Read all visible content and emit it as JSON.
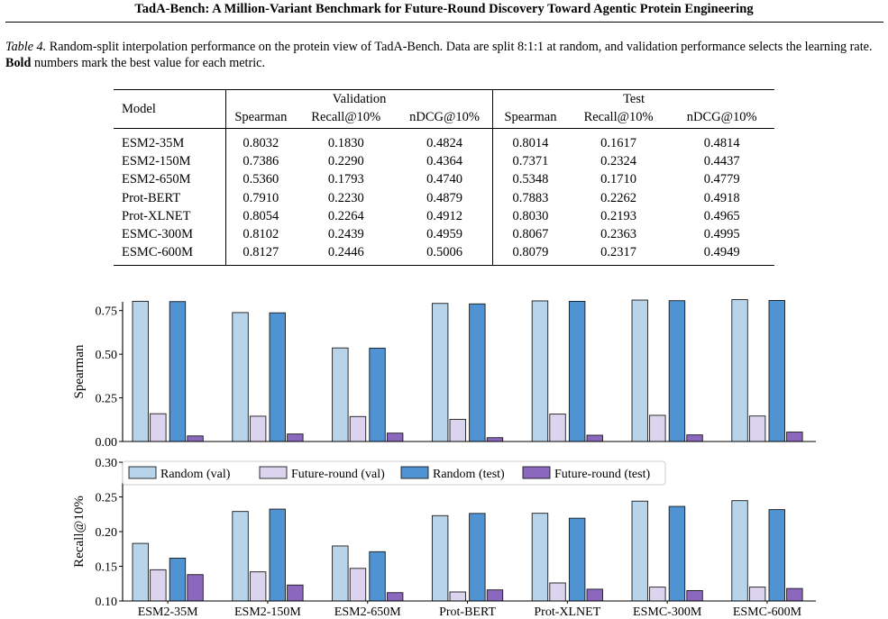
{
  "running_head": "TadA-Bench: A Million-Variant Benchmark for Future-Round Discovery Toward Agentic Protein Engineering",
  "caption": {
    "label": "Table 4.",
    "text_1": " Random-split interpolation performance on the protein view of TadA-Bench. Data are split 8:1:1 at random, and validation performance selects the learning rate. ",
    "bold_word": "Bold",
    "text_2": " numbers mark the best value for each metric."
  },
  "table": {
    "model_header": "Model",
    "groups": [
      "Validation",
      "Test"
    ],
    "metrics": [
      "Spearman",
      "Recall@10%",
      "nDCG@10%",
      "Spearman",
      "Recall@10%",
      "nDCG@10%"
    ],
    "rows": [
      {
        "model": "ESM2-35M",
        "cells": [
          {
            "v": "0.8032",
            "b": false
          },
          {
            "v": "0.1830",
            "b": false
          },
          {
            "v": "0.4824",
            "b": false
          },
          {
            "v": "0.8014",
            "b": false
          },
          {
            "v": "0.1617",
            "b": false
          },
          {
            "v": "0.4814",
            "b": false
          }
        ]
      },
      {
        "model": "ESM2-150M",
        "cells": [
          {
            "v": "0.7386",
            "b": false
          },
          {
            "v": "0.2290",
            "b": false
          },
          {
            "v": "0.4364",
            "b": false
          },
          {
            "v": "0.7371",
            "b": false
          },
          {
            "v": "0.2324",
            "b": false
          },
          {
            "v": "0.4437",
            "b": false
          }
        ]
      },
      {
        "model": "ESM2-650M",
        "cells": [
          {
            "v": "0.5360",
            "b": false
          },
          {
            "v": "0.1793",
            "b": false
          },
          {
            "v": "0.4740",
            "b": false
          },
          {
            "v": "0.5348",
            "b": false
          },
          {
            "v": "0.1710",
            "b": false
          },
          {
            "v": "0.4779",
            "b": false
          }
        ]
      },
      {
        "model": "Prot-BERT",
        "cells": [
          {
            "v": "0.7910",
            "b": false
          },
          {
            "v": "0.2230",
            "b": false
          },
          {
            "v": "0.4879",
            "b": false
          },
          {
            "v": "0.7883",
            "b": false
          },
          {
            "v": "0.2262",
            "b": false
          },
          {
            "v": "0.4918",
            "b": false
          }
        ]
      },
      {
        "model": "Prot-XLNET",
        "cells": [
          {
            "v": "0.8054",
            "b": false
          },
          {
            "v": "0.2264",
            "b": false
          },
          {
            "v": "0.4912",
            "b": false
          },
          {
            "v": "0.8030",
            "b": false
          },
          {
            "v": "0.2193",
            "b": false
          },
          {
            "v": "0.4965",
            "b": false
          }
        ]
      },
      {
        "model": "ESMC-300M",
        "cells": [
          {
            "v": "0.8102",
            "b": false
          },
          {
            "v": "0.2439",
            "b": false
          },
          {
            "v": "0.4959",
            "b": false
          },
          {
            "v": "0.8067",
            "b": false
          },
          {
            "v": "0.2363",
            "b": true
          },
          {
            "v": "0.4995",
            "b": true
          }
        ]
      },
      {
        "model": "ESMC-600M",
        "cells": [
          {
            "v": "0.8127",
            "b": true
          },
          {
            "v": "0.2446",
            "b": true
          },
          {
            "v": "0.5006",
            "b": true
          },
          {
            "v": "0.8079",
            "b": true
          },
          {
            "v": "0.2317",
            "b": false
          },
          {
            "v": "0.4949",
            "b": false
          }
        ]
      }
    ]
  },
  "chart_data": [
    {
      "type": "bar",
      "ylabel": "Spearman",
      "ylim": [
        0,
        0.8
      ],
      "yticks": [
        "0.00",
        "0.25",
        "0.50",
        "0.75"
      ],
      "ytick_values": [
        0,
        0.25,
        0.5,
        0.75
      ],
      "grid": false,
      "categories": [
        "ESM2-35M",
        "ESM2-150M",
        "ESM2-650M",
        "Prot-BERT",
        "Prot-XLNET",
        "ESMC-300M",
        "ESMC-600M"
      ],
      "series": [
        {
          "name": "Random (val)",
          "color": "#b7d4ea",
          "values": [
            0.8032,
            0.7386,
            0.536,
            0.791,
            0.8054,
            0.8102,
            0.8127
          ]
        },
        {
          "name": "Future-round (val)",
          "color": "#dcd3ef",
          "values": [
            0.159,
            0.145,
            0.143,
            0.127,
            0.157,
            0.15,
            0.146
          ]
        },
        {
          "name": "Random (test)",
          "color": "#4f93d3",
          "values": [
            0.8014,
            0.7371,
            0.5348,
            0.7883,
            0.803,
            0.8067,
            0.8079
          ]
        },
        {
          "name": "Future-round (test)",
          "color": "#8b68be",
          "values": [
            0.032,
            0.043,
            0.048,
            0.022,
            0.036,
            0.038,
            0.054
          ]
        }
      ]
    },
    {
      "type": "bar",
      "ylabel": "Recall@10%",
      "ylim": [
        0.1,
        0.3
      ],
      "yticks": [
        "0.10",
        "0.15",
        "0.20",
        "0.25",
        "0.30"
      ],
      "ytick_values": [
        0.1,
        0.15,
        0.2,
        0.25,
        0.3
      ],
      "grid": false,
      "legend_placement": "top",
      "categories": [
        "ESM2-35M",
        "ESM2-150M",
        "ESM2-650M",
        "Prot-BERT",
        "Prot-XLNET",
        "ESMC-300M",
        "ESMC-600M"
      ],
      "series": [
        {
          "name": "Random (val)",
          "color": "#b7d4ea",
          "values": [
            0.183,
            0.229,
            0.1793,
            0.223,
            0.2264,
            0.2439,
            0.2446
          ]
        },
        {
          "name": "Future-round (val)",
          "color": "#dcd3ef",
          "values": [
            0.145,
            0.142,
            0.147,
            0.113,
            0.126,
            0.12,
            0.12
          ]
        },
        {
          "name": "Random (test)",
          "color": "#4f93d3",
          "values": [
            0.1617,
            0.2324,
            0.171,
            0.2262,
            0.2193,
            0.2363,
            0.2317
          ]
        },
        {
          "name": "Future-round (test)",
          "color": "#8b68be",
          "values": [
            0.138,
            0.123,
            0.112,
            0.116,
            0.117,
            0.115,
            0.118
          ]
        }
      ]
    }
  ]
}
